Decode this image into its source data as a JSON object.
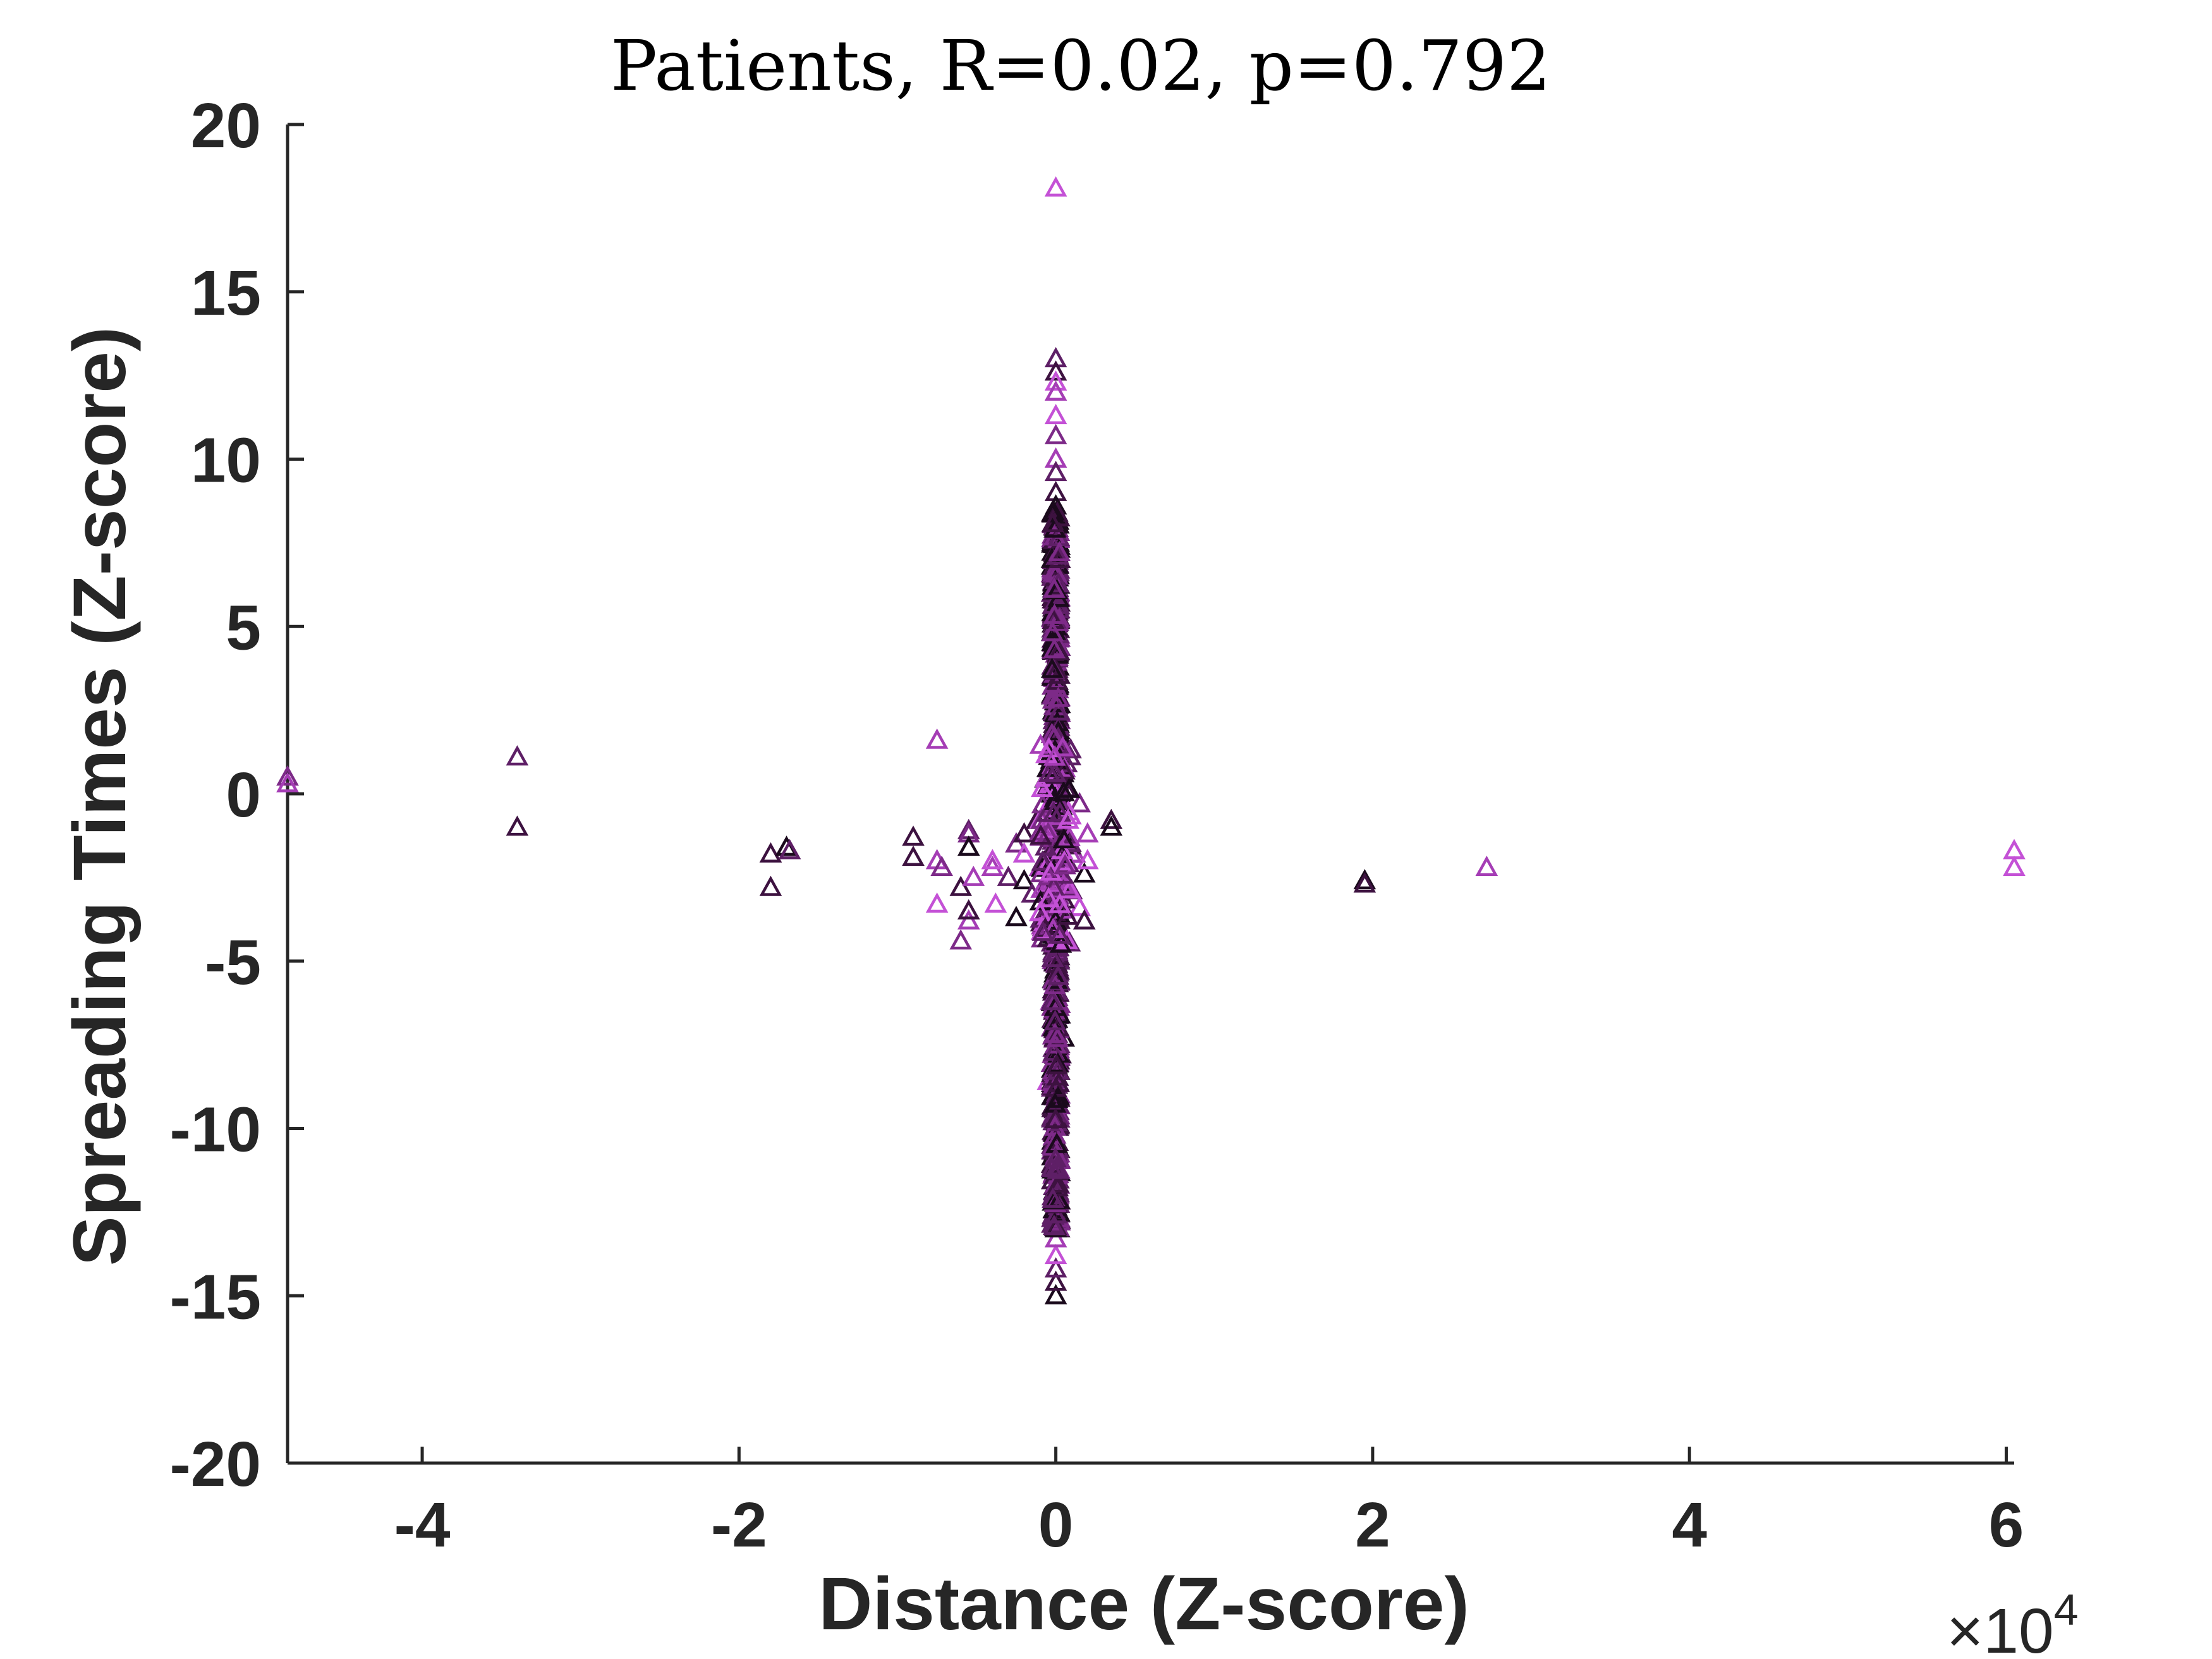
{
  "chart_data": {
    "type": "scatter",
    "title": "Patients, R=0.02, p=0.792",
    "xlabel": "Distance (Z-score)",
    "ylabel": "Spreading Times (Z-score)",
    "x_multiplier": {
      "base": "×10",
      "exponent": "4"
    },
    "xlim": [
      -4.85,
      6.05
    ],
    "ylim": [
      -20,
      20
    ],
    "x_ticks": [
      {
        "value": -4,
        "label": "-4"
      },
      {
        "value": -2,
        "label": "-2"
      },
      {
        "value": 0,
        "label": "0"
      },
      {
        "value": 2,
        "label": "2"
      },
      {
        "value": 4,
        "label": "4"
      },
      {
        "value": 6,
        "label": "6"
      }
    ],
    "y_ticks": [
      {
        "value": 20,
        "label": "20"
      },
      {
        "value": 15,
        "label": "15"
      },
      {
        "value": 10,
        "label": "10"
      },
      {
        "value": 5,
        "label": "5"
      },
      {
        "value": 0,
        "label": "0"
      },
      {
        "value": -5,
        "label": "-5"
      },
      {
        "value": -10,
        "label": "-10"
      },
      {
        "value": -15,
        "label": "-15"
      },
      {
        "value": -20,
        "label": "-20"
      }
    ],
    "grid": false,
    "legend": "none",
    "marker": "triangle-open",
    "colors": [
      "#1a0a1c",
      "#3d1240",
      "#5e1f66",
      "#7d2a88",
      "#a53db5",
      "#c451d6"
    ],
    "series": [
      {
        "x_unit": "x10^4",
        "points": [
          [
            -4.85,
            0.5,
            3
          ],
          [
            -4.85,
            0.3,
            4
          ],
          [
            -3.4,
            1.1,
            2
          ],
          [
            -3.4,
            -1.0,
            1
          ],
          [
            -1.8,
            -1.8,
            1
          ],
          [
            -1.8,
            -2.8,
            1
          ],
          [
            -1.7,
            -1.6,
            0
          ],
          [
            -1.68,
            -1.7,
            2
          ],
          [
            -0.9,
            -1.3,
            1
          ],
          [
            -0.9,
            -1.9,
            1
          ],
          [
            -0.75,
            1.6,
            4
          ],
          [
            -0.75,
            -2.0,
            4
          ],
          [
            -0.72,
            -2.2,
            3
          ],
          [
            -0.75,
            -3.3,
            5
          ],
          [
            -0.6,
            -4.4,
            3
          ],
          [
            -0.55,
            -3.8,
            4
          ],
          [
            -0.6,
            -2.8,
            1
          ],
          [
            -0.55,
            -1.1,
            2
          ],
          [
            -0.55,
            -1.2,
            3
          ],
          [
            -0.55,
            -1.6,
            0
          ],
          [
            -0.55,
            -3.5,
            1
          ],
          [
            -0.52,
            -2.5,
            4
          ],
          [
            -0.4,
            -2.2,
            4
          ],
          [
            -0.38,
            -3.3,
            5
          ],
          [
            -0.4,
            -2.0,
            5
          ],
          [
            -0.3,
            -2.5,
            2
          ],
          [
            -0.25,
            -3.7,
            0
          ],
          [
            -0.25,
            -1.5,
            3
          ],
          [
            -0.2,
            -1.2,
            1
          ],
          [
            -0.2,
            -1.8,
            5
          ],
          [
            -0.2,
            -2.6,
            0
          ],
          [
            -0.15,
            -3.0,
            2
          ],
          [
            -0.12,
            -0.8,
            1
          ],
          [
            -0.1,
            -2.2,
            4
          ],
          [
            -0.08,
            -4.0,
            3
          ],
          [
            -0.05,
            -1.0,
            0
          ],
          [
            0.05,
            0.8,
            5
          ],
          [
            0.08,
            -1.4,
            1
          ],
          [
            0.1,
            -2.9,
            2
          ],
          [
            0.12,
            -1.8,
            4
          ],
          [
            0.15,
            -0.3,
            3
          ],
          [
            0.15,
            -3.4,
            5
          ],
          [
            0.18,
            -2.4,
            0
          ],
          [
            0.18,
            -3.8,
            1
          ],
          [
            0.2,
            -1.2,
            4
          ],
          [
            0.2,
            -2.0,
            5
          ],
          [
            0.35,
            -0.8,
            1
          ],
          [
            0.35,
            -1.0,
            0
          ],
          [
            1.95,
            -2.6,
            0
          ],
          [
            1.95,
            -2.7,
            1
          ],
          [
            2.72,
            -2.2,
            4
          ],
          [
            6.05,
            -1.7,
            5
          ],
          [
            6.05,
            -2.2,
            5
          ],
          [
            0.0,
            18.1,
            5
          ],
          [
            0.0,
            13.0,
            2
          ],
          [
            0.0,
            12.6,
            1
          ],
          [
            0.0,
            12.3,
            5
          ],
          [
            0.0,
            12.0,
            4
          ],
          [
            0.0,
            11.3,
            5
          ],
          [
            0.0,
            10.7,
            3
          ],
          [
            0.0,
            10.0,
            4
          ],
          [
            0.0,
            9.6,
            2
          ],
          [
            0.0,
            9.0,
            1
          ],
          [
            0.0,
            8.6,
            0
          ],
          [
            0.0,
            -15.0,
            0
          ],
          [
            0.0,
            -14.6,
            1
          ],
          [
            0.0,
            -14.2,
            2
          ],
          [
            0.0,
            -13.8,
            5
          ],
          [
            0.0,
            -13.3,
            4
          ],
          [
            0.0,
            -13.0,
            0
          ],
          [
            0.0,
            -12.5,
            3
          ],
          [
            -0.05,
            -8.6,
            5
          ],
          [
            0.05,
            -7.3,
            0
          ],
          [
            0.03,
            -7.8,
            1
          ],
          [
            -0.03,
            -6.2,
            4
          ],
          [
            -0.02,
            5.2,
            5
          ],
          [
            -0.03,
            1.4,
            4
          ],
          [
            0.02,
            -5.6,
            3
          ]
        ]
      }
    ]
  }
}
